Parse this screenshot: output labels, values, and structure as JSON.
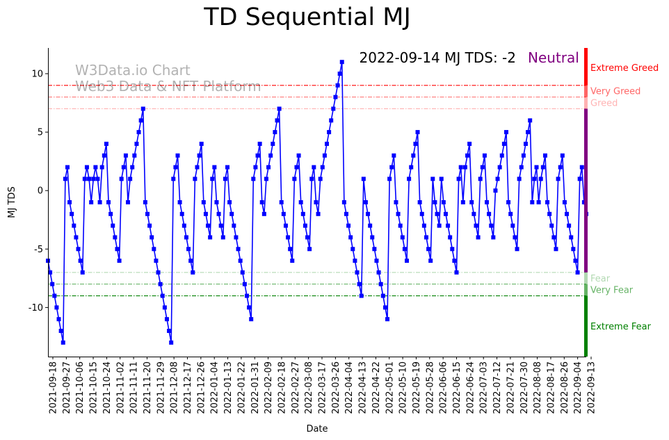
{
  "chart_data": {
    "type": "line",
    "title": "TD Sequential MJ",
    "xlabel": "Date",
    "ylabel": "MJ TDS",
    "ylim": [
      -14.2,
      12.2
    ],
    "yticks": [
      10,
      5,
      0,
      -5,
      -10
    ],
    "x_tick_labels": [
      "2021-09-18",
      "2021-09-27",
      "2021-10-06",
      "2021-10-15",
      "2021-10-24",
      "2021-11-02",
      "2021-11-11",
      "2021-11-20",
      "2021-11-29",
      "2021-12-08",
      "2021-12-17",
      "2021-12-26",
      "2022-01-04",
      "2022-01-13",
      "2022-01-22",
      "2022-01-31",
      "2022-02-09",
      "2022-02-18",
      "2022-02-27",
      "2022-03-08",
      "2022-03-17",
      "2022-03-26",
      "2022-04-04",
      "2022-04-13",
      "2022-04-22",
      "2022-05-01",
      "2022-05-10",
      "2022-05-19",
      "2022-05-28",
      "2022-06-06",
      "2022-06-15",
      "2022-06-24",
      "2022-07-03",
      "2022-07-12",
      "2022-07-21",
      "2022-07-30",
      "2022-08-08",
      "2022-08-17",
      "2022-08-26",
      "2022-09-04",
      "2022-09-13"
    ],
    "series": [
      {
        "name": "MJ TDS",
        "color": "#0000ff",
        "values": [
          -6,
          -7,
          -8,
          -9,
          -10,
          -11,
          -12,
          -13,
          1,
          2,
          -1,
          -2,
          -3,
          -4,
          -5,
          -6,
          -7,
          1,
          2,
          1,
          -1,
          1,
          2,
          1,
          -1,
          2,
          3,
          4,
          -1,
          -2,
          -3,
          -4,
          -5,
          -6,
          1,
          2,
          3,
          -1,
          1,
          2,
          3,
          4,
          5,
          6,
          7,
          -1,
          -2,
          -3,
          -4,
          -5,
          -6,
          -7,
          -8,
          -9,
          -10,
          -11,
          -12,
          -13,
          1,
          2,
          3,
          -1,
          -2,
          -3,
          -4,
          -5,
          -6,
          -7,
          1,
          2,
          3,
          4,
          -1,
          -2,
          -3,
          -4,
          1,
          2,
          -1,
          -2,
          -3,
          -4,
          1,
          2,
          -1,
          -2,
          -3,
          -4,
          -5,
          -6,
          -7,
          -8,
          -9,
          -10,
          -11,
          1,
          2,
          3,
          4,
          -1,
          -2,
          1,
          2,
          3,
          4,
          5,
          6,
          7,
          -1,
          -2,
          -3,
          -4,
          -5,
          -6,
          1,
          2,
          3,
          -1,
          -2,
          -3,
          -4,
          -5,
          1,
          2,
          -1,
          -2,
          1,
          2,
          3,
          4,
          5,
          6,
          7,
          8,
          9,
          10,
          11,
          -1,
          -2,
          -3,
          -4,
          -5,
          -6,
          -7,
          -8,
          -9,
          1,
          -1,
          -2,
          -3,
          -4,
          -5,
          -6,
          -7,
          -8,
          -9,
          -10,
          -11,
          1,
          2,
          3,
          -1,
          -2,
          -3,
          -4,
          -5,
          -6,
          1,
          2,
          3,
          4,
          5,
          -1,
          -2,
          -3,
          -4,
          -5,
          -6,
          1,
          -1,
          -2,
          -3,
          1,
          -1,
          -2,
          -3,
          -4,
          -5,
          -6,
          -7,
          1,
          2,
          -1,
          2,
          3,
          4,
          -1,
          -2,
          -3,
          -4,
          1,
          2,
          3,
          -1,
          -2,
          -3,
          -4,
          0,
          1,
          2,
          3,
          4,
          5,
          -1,
          -2,
          -3,
          -4,
          -5,
          1,
          2,
          3,
          4,
          5,
          6,
          -1,
          1,
          2,
          -1,
          1,
          2,
          3,
          -1,
          -2,
          -3,
          -4,
          -5,
          1,
          2,
          3,
          -1,
          -2,
          -3,
          -4,
          -5,
          -6,
          -7,
          1,
          2,
          -1,
          -2
        ]
      }
    ],
    "reference_lines": [
      {
        "value": 9,
        "color": "#ff0000",
        "opacity": 1.0,
        "style": "dashdot"
      },
      {
        "value": 8,
        "color": "#ff0000",
        "opacity": 0.6,
        "style": "dashdot"
      },
      {
        "value": 7,
        "color": "#ff0000",
        "opacity": 0.3,
        "style": "dashdot"
      },
      {
        "value": -7,
        "color": "#008000",
        "opacity": 0.3,
        "style": "dashdot"
      },
      {
        "value": -8,
        "color": "#008000",
        "opacity": 0.6,
        "style": "dashdot"
      },
      {
        "value": -9,
        "color": "#008000",
        "opacity": 1.0,
        "style": "dashdot"
      }
    ],
    "right_bands": [
      {
        "label": "Extreme Greed",
        "from": 9,
        "to": 12.2,
        "color": "#ff0000",
        "opacity": 1.0,
        "label_y": 10.5
      },
      {
        "label": "Very Greed",
        "from": 8,
        "to": 9,
        "color": "#ff0000",
        "opacity": 0.6,
        "label_y": 8.5
      },
      {
        "label": "Greed",
        "from": 7,
        "to": 8,
        "color": "#ff0000",
        "opacity": 0.3,
        "label_y": 7.5
      },
      {
        "label": "Neutral",
        "from": -7,
        "to": 7,
        "color": "#800080",
        "opacity": 1.0,
        "label_y": null
      },
      {
        "label": "Fear",
        "from": -8,
        "to": -7,
        "color": "#008000",
        "opacity": 0.3,
        "label_y": -7.5
      },
      {
        "label": "Very Fear",
        "from": -9,
        "to": -8,
        "color": "#008000",
        "opacity": 0.6,
        "label_y": -8.5
      },
      {
        "label": "Extreme Fear",
        "from": -14.2,
        "to": -9,
        "color": "#008000",
        "opacity": 1.0,
        "label_y": -11.6
      }
    ],
    "annotation": {
      "date_text": "2022-09-14 MJ TDS: -2",
      "status_text": "Neutral",
      "status_color": "#800080"
    },
    "watermark": [
      "W3Data.io Chart",
      "Web3 Data & NFT Platform"
    ]
  }
}
